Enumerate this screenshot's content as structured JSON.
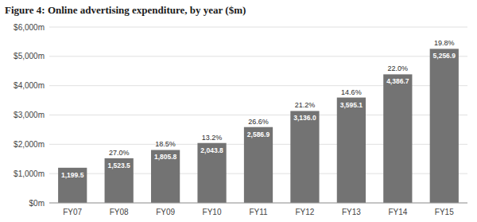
{
  "chart_data": {
    "type": "bar",
    "title": "Figure 4: Online advertising expenditure, by year ($m)",
    "categories": [
      "FY07",
      "FY08",
      "FY09",
      "FY10",
      "FY11",
      "FY12",
      "FY13",
      "FY14",
      "FY15"
    ],
    "values": [
      1199.5,
      1523.5,
      1805.8,
      2043.8,
      2586.9,
      3136.0,
      3595.1,
      4386.7,
      5256.9
    ],
    "value_labels": [
      "1,199.5",
      "1,523.5",
      "1,805.8",
      "2,043.8",
      "2,586.9",
      "3,136.0",
      "3,595.1",
      "4,386.7",
      "5,256.9"
    ],
    "growth_labels": [
      null,
      "27.0%",
      "18.5%",
      "13.2%",
      "26.6%",
      "21.2%",
      "14.6%",
      "22.0%",
      "19.8%"
    ],
    "color": "#737373",
    "ylim": [
      0,
      6000
    ],
    "yticks": [
      {
        "value": 0,
        "label": "$0m"
      },
      {
        "value": 1000,
        "label": "$1,000m"
      },
      {
        "value": 2000,
        "label": "$2,000m"
      },
      {
        "value": 3000,
        "label": "$3,000m"
      },
      {
        "value": 4000,
        "label": "$4,000m"
      },
      {
        "value": 5000,
        "label": "$5,000m"
      },
      {
        "value": 6000,
        "label": "$6,000m"
      }
    ],
    "grid": true,
    "data_labels": true
  }
}
